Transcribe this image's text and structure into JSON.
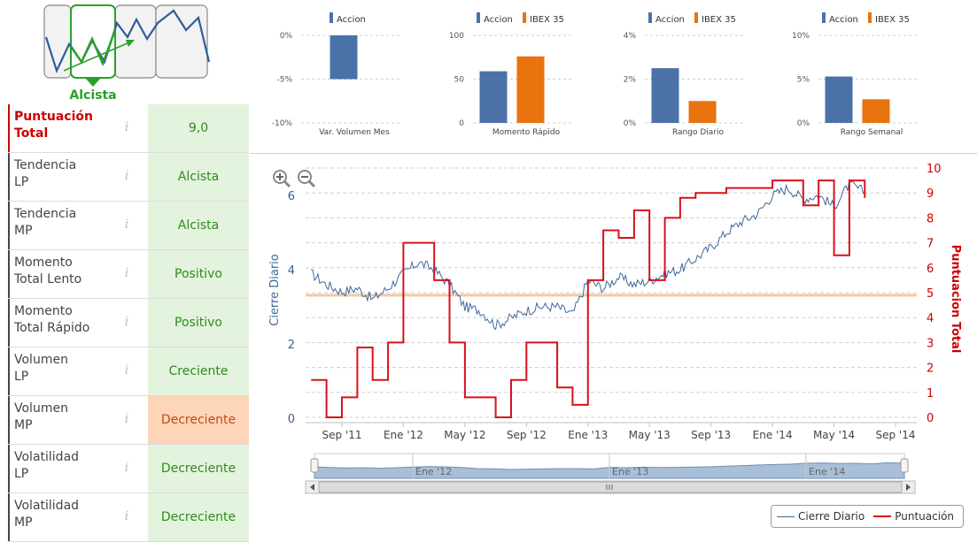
{
  "logo": {
    "label": "Alcista"
  },
  "indicators": [
    {
      "name_line1": "Puntuación",
      "name_line2": "Total",
      "value": "9,0",
      "style": "total"
    },
    {
      "name_line1": "Tendencia",
      "name_line2": "LP",
      "value": "Alcista",
      "style": "green"
    },
    {
      "name_line1": "Tendencia",
      "name_line2": "MP",
      "value": "Alcista",
      "style": "green"
    },
    {
      "name_line1": "Momento",
      "name_line2": "Total Lento",
      "value": "Positivo",
      "style": "green"
    },
    {
      "name_line1": "Momento",
      "name_line2": "Total Rápido",
      "value": "Positivo",
      "style": "green"
    },
    {
      "name_line1": "Volumen",
      "name_line2": "LP",
      "value": "Creciente",
      "style": "green"
    },
    {
      "name_line1": "Volumen",
      "name_line2": "MP",
      "value": "Decreciente",
      "style": "orange"
    },
    {
      "name_line1": "Volatilidad",
      "name_line2": "LP",
      "value": "Decreciente",
      "style": "green"
    },
    {
      "name_line1": "Volatilidad",
      "name_line2": "MP",
      "value": "Decreciente",
      "style": "green"
    }
  ],
  "info_glyph": "i",
  "colors": {
    "accion": "#4a72a8",
    "ibex": "#e8730f",
    "cierre": "#3d6a9a",
    "puntuacion": "#d9101a",
    "band": "#f2c9a4",
    "green_text": "#2e8b1f",
    "red_text": "#c00000"
  },
  "chart_data": [
    {
      "type": "bar",
      "title": "Var. Volumen Mes",
      "categories": [
        "Var. Volumen Mes"
      ],
      "series": [
        {
          "name": "Accion",
          "values": [
            -5
          ]
        }
      ],
      "ylim": [
        -10,
        0
      ],
      "yticks": [
        "0%",
        "-5%",
        "-10%"
      ]
    },
    {
      "type": "bar",
      "title": "Momento Rápido",
      "categories": [
        "Momento Rápido"
      ],
      "series": [
        {
          "name": "Accion",
          "values": [
            59
          ]
        },
        {
          "name": "IBEX 35",
          "values": [
            76
          ]
        }
      ],
      "ylim": [
        0,
        100
      ],
      "yticks": [
        "100",
        "50",
        "0"
      ]
    },
    {
      "type": "bar",
      "title": "Rango Diario",
      "categories": [
        "Rango Diario"
      ],
      "series": [
        {
          "name": "Accion",
          "values": [
            2.5
          ]
        },
        {
          "name": "IBEX 35",
          "values": [
            1.0
          ]
        }
      ],
      "ylim": [
        0,
        4
      ],
      "yticks": [
        "4%",
        "2%",
        "0%"
      ]
    },
    {
      "type": "bar",
      "title": "Rango Semanal",
      "categories": [
        "Rango Semanal"
      ],
      "series": [
        {
          "name": "Accion",
          "values": [
            5.3
          ]
        },
        {
          "name": "IBEX 35",
          "values": [
            2.7
          ]
        }
      ],
      "ylim": [
        0,
        10
      ],
      "yticks": [
        "10%",
        "5%",
        "0%"
      ]
    },
    {
      "type": "line",
      "title": "",
      "xlabel": "",
      "ylabel_left": "Cierre Diario",
      "ylabel_right": "Puntuacion Total",
      "ylim_left": [
        0,
        7
      ],
      "ylim_right": [
        0,
        10
      ],
      "yticks_left": [
        "0",
        "2",
        "4",
        "6"
      ],
      "yticks_right": [
        "0",
        "1",
        "2",
        "3",
        "4",
        "5",
        "6",
        "7",
        "8",
        "9",
        "10"
      ],
      "xticks": [
        "Sep '11",
        "Ene '12",
        "May '12",
        "Sep '12",
        "Ene '13",
        "May '13",
        "Sep '13",
        "Ene '14",
        "May '14",
        "Sep '14"
      ],
      "navigator_labels": [
        "Ene '12",
        "Ene '13",
        "Ene '14"
      ],
      "reference_line_right": 4.9,
      "series": [
        {
          "name": "Cierre Diario",
          "axis": "left",
          "points": [
            [
              "2011-07",
              3.9
            ],
            [
              "2011-08",
              3.6
            ],
            [
              "2011-09",
              3.4
            ],
            [
              "2011-10",
              3.5
            ],
            [
              "2011-11",
              3.2
            ],
            [
              "2011-12",
              3.5
            ],
            [
              "2012-01",
              3.9
            ],
            [
              "2012-02",
              4.2
            ],
            [
              "2012-03",
              4.0
            ],
            [
              "2012-04",
              3.6
            ],
            [
              "2012-05",
              3.0
            ],
            [
              "2012-06",
              2.9
            ],
            [
              "2012-07",
              2.5
            ],
            [
              "2012-08",
              2.7
            ],
            [
              "2012-09",
              2.9
            ],
            [
              "2012-10",
              3.0
            ],
            [
              "2012-11",
              3.0
            ],
            [
              "2012-12",
              2.8
            ],
            [
              "2013-01",
              3.7
            ],
            [
              "2013-02",
              3.5
            ],
            [
              "2013-03",
              3.8
            ],
            [
              "2013-04",
              3.6
            ],
            [
              "2013-05",
              3.7
            ],
            [
              "2013-06",
              3.9
            ],
            [
              "2013-07",
              4.0
            ],
            [
              "2013-08",
              4.3
            ],
            [
              "2013-09",
              4.6
            ],
            [
              "2013-10",
              5.0
            ],
            [
              "2013-11",
              5.3
            ],
            [
              "2013-12",
              5.5
            ],
            [
              "2014-01",
              6.0
            ],
            [
              "2014-02",
              6.2
            ],
            [
              "2014-03",
              5.9
            ],
            [
              "2014-04",
              6.0
            ],
            [
              "2014-05",
              5.7
            ],
            [
              "2014-06",
              6.3
            ],
            [
              "2014-07",
              6.1
            ]
          ]
        },
        {
          "name": "Puntuación",
          "axis": "right",
          "points": [
            [
              "2011-07",
              1.5
            ],
            [
              "2011-08",
              0
            ],
            [
              "2011-09",
              0.8
            ],
            [
              "2011-10",
              2.8
            ],
            [
              "2011-11",
              1.5
            ],
            [
              "2011-12",
              3.0
            ],
            [
              "2012-01",
              7.0
            ],
            [
              "2012-02",
              7.0
            ],
            [
              "2012-03",
              5.5
            ],
            [
              "2012-04",
              3.0
            ],
            [
              "2012-05",
              0.8
            ],
            [
              "2012-06",
              0.8
            ],
            [
              "2012-07",
              0.0
            ],
            [
              "2012-08",
              1.5
            ],
            [
              "2012-09",
              3.0
            ],
            [
              "2012-10",
              3.0
            ],
            [
              "2012-11",
              1.2
            ],
            [
              "2012-12",
              0.5
            ],
            [
              "2013-01",
              5.5
            ],
            [
              "2013-02",
              7.5
            ],
            [
              "2013-03",
              7.2
            ],
            [
              "2013-04",
              8.3
            ],
            [
              "2013-05",
              5.5
            ],
            [
              "2013-06",
              8.0
            ],
            [
              "2013-07",
              8.8
            ],
            [
              "2013-08",
              9.0
            ],
            [
              "2013-09",
              9.0
            ],
            [
              "2013-10",
              9.2
            ],
            [
              "2013-11",
              9.2
            ],
            [
              "2013-12",
              9.2
            ],
            [
              "2014-01",
              9.5
            ],
            [
              "2014-02",
              9.5
            ],
            [
              "2014-03",
              8.5
            ],
            [
              "2014-04",
              9.5
            ],
            [
              "2014-05",
              6.5
            ],
            [
              "2014-06",
              9.5
            ],
            [
              "2014-07",
              8.8
            ]
          ]
        }
      ]
    }
  ],
  "legend": {
    "series1": "Cierre Diario",
    "series2": "Puntuación"
  },
  "mini_legend": {
    "accion": "Accion",
    "ibex": "IBEX 35"
  }
}
